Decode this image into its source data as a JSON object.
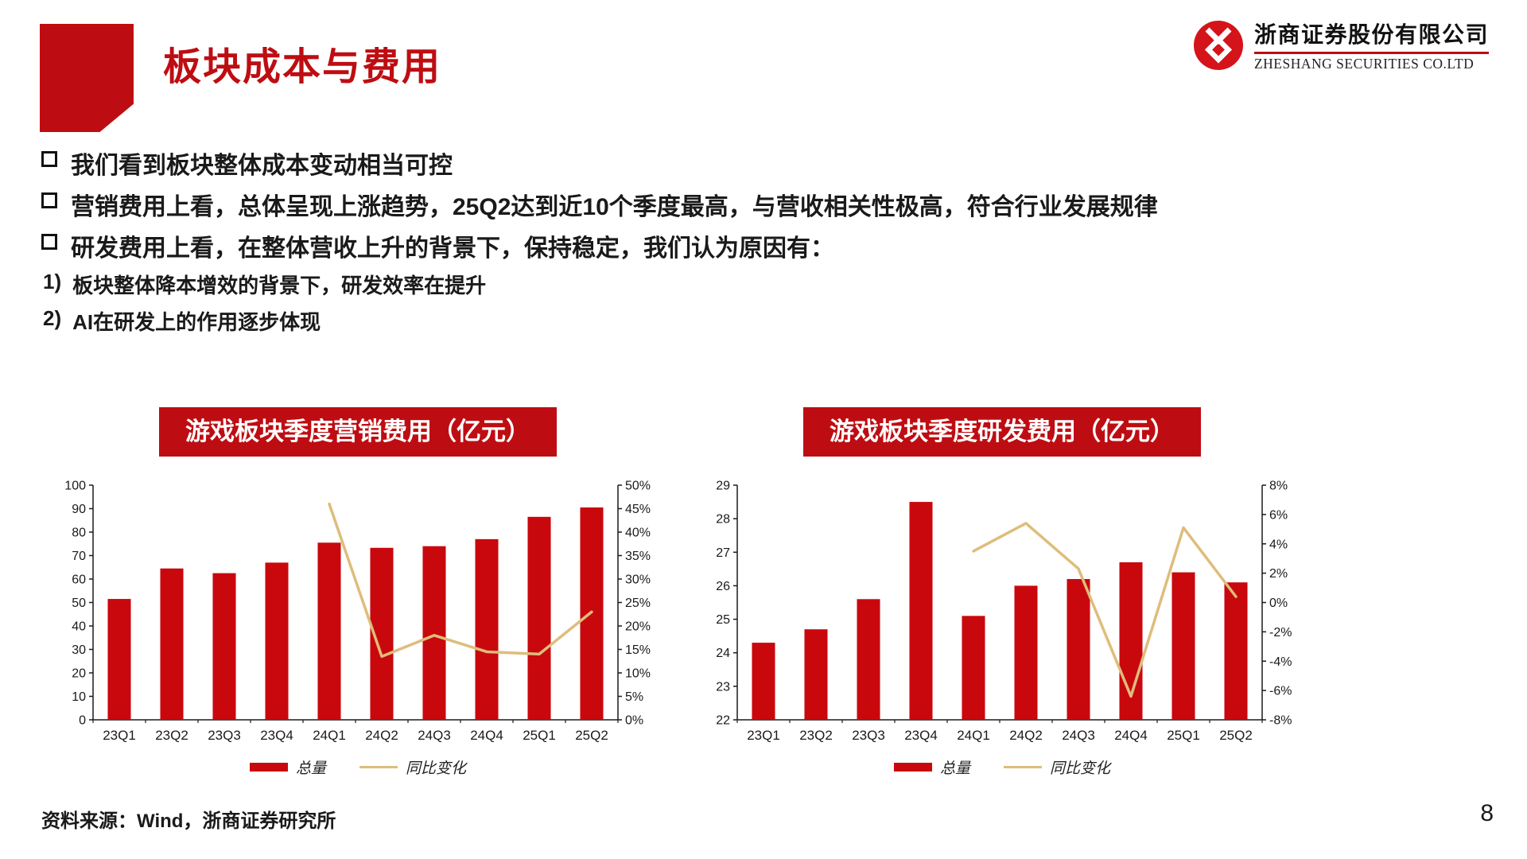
{
  "slide": {
    "title": "板块成本与费用",
    "page_number": "8",
    "source_note": "资料来源：Wind，浙商证券研究所"
  },
  "logo": {
    "company_cn": "浙商证券股份有限公司",
    "company_en": "ZHESHANG SECURITIES CO.LTD"
  },
  "bullets": [
    "我们看到板块整体成本变动相当可控",
    "营销费用上看，总体呈现上涨趋势，25Q2达到近10个季度最高，与营收相关性极高，符合行业发展规律",
    "研发费用上看，在整体营收上升的背景下，保持稳定，我们认为原因有："
  ],
  "numbered_points": [
    {
      "num": "1)",
      "text": "板块整体降本增效的背景下，研发效率在提升"
    },
    {
      "num": "2)",
      "text": "AI在研发上的作用逐步体现"
    }
  ],
  "colors": {
    "accent_red": "#be0d12",
    "bar_red": "#c9080d",
    "line_tan": "#debd7b",
    "text_black": "#1a1a1a"
  },
  "chart_data": [
    {
      "type": "bar",
      "title": "游戏板块季度营销费用（亿元）",
      "categories": [
        "23Q1",
        "23Q2",
        "23Q3",
        "23Q4",
        "24Q1",
        "24Q2",
        "24Q3",
        "24Q4",
        "25Q1",
        "25Q2"
      ],
      "series": [
        {
          "name": "总量",
          "type": "bar",
          "axis": "left",
          "values": [
            51.5,
            64.5,
            62.5,
            67.0,
            75.5,
            73.3,
            74.0,
            77.0,
            86.5,
            90.5
          ]
        },
        {
          "name": "同比变化",
          "type": "line",
          "axis": "right",
          "unit": "%",
          "values": [
            null,
            null,
            null,
            null,
            46,
            13.5,
            18,
            14.5,
            14,
            23
          ]
        }
      ],
      "left_axis": {
        "min": 0,
        "max": 100,
        "step": 10
      },
      "right_axis": {
        "min": 0,
        "max": 50,
        "step": 5,
        "suffix": "%"
      },
      "grid": false,
      "legend_position": "bottom"
    },
    {
      "type": "bar",
      "title": "游戏板块季度研发费用（亿元）",
      "categories": [
        "23Q1",
        "23Q2",
        "23Q3",
        "23Q4",
        "24Q1",
        "24Q2",
        "24Q3",
        "24Q4",
        "25Q1",
        "25Q2"
      ],
      "series": [
        {
          "name": "总量",
          "type": "bar",
          "axis": "left",
          "values": [
            24.3,
            24.7,
            25.6,
            28.5,
            25.1,
            26.0,
            26.2,
            26.7,
            26.4,
            26.1
          ]
        },
        {
          "name": "同比变化",
          "type": "line",
          "axis": "right",
          "unit": "%",
          "values": [
            null,
            null,
            null,
            null,
            3.5,
            5.4,
            2.3,
            -6.4,
            5.1,
            0.4
          ]
        }
      ],
      "left_axis": {
        "min": 22,
        "max": 29,
        "step": 1
      },
      "right_axis": {
        "min": -8,
        "max": 8,
        "step": 2,
        "suffix": "%"
      },
      "grid": false,
      "legend_position": "bottom"
    }
  ]
}
